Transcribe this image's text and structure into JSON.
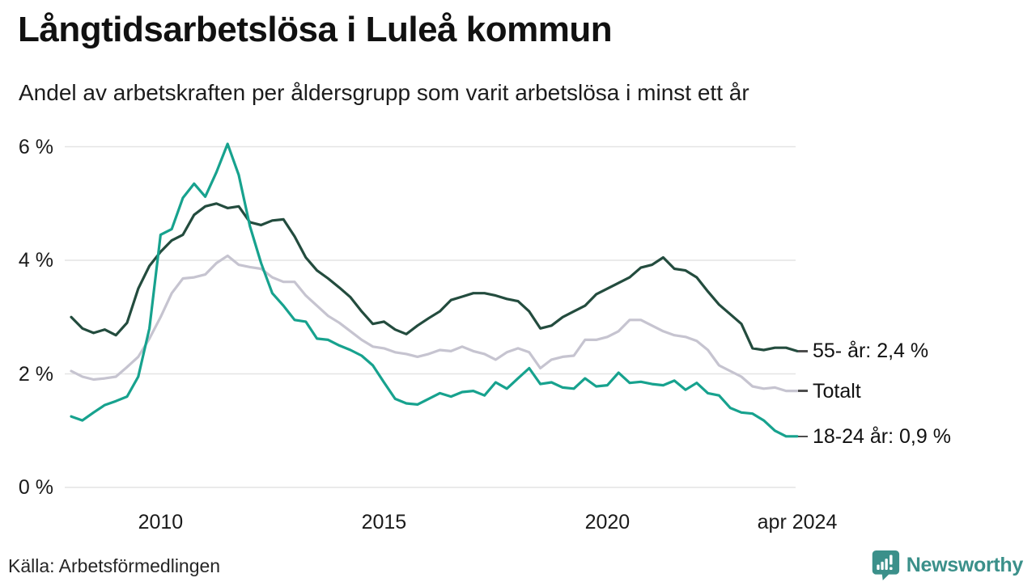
{
  "header": {
    "title": "Långtidsarbetslösa i Luleå kommun",
    "subtitle": "Andel av arbetskraften per åldersgrupp som varit arbetslösa i minst ett år"
  },
  "footer": {
    "source": "Källa: Arbetsförmedlingen",
    "brand": "Newsworthy"
  },
  "colors": {
    "series_55": "#234c3e",
    "series_total": "#c6c4d0",
    "series_18_24": "#17a28e",
    "gridline": "#e4e4e4",
    "label_tick": "#4d4d4d",
    "brand_teal": "#3b908a"
  },
  "chart_data": {
    "type": "line",
    "title": "Långtidsarbetslösa i Luleå kommun",
    "subtitle": "Andel av arbetskraften per åldersgrupp som varit arbetslösa i minst ett år",
    "xlabel": "",
    "ylabel": "",
    "grid": "horizontal",
    "legend_position": "right-end-of-line",
    "xlim": [
      2008.0,
      2024.25
    ],
    "ylim": [
      0,
      6.2
    ],
    "x_unit": "year (decimal, quarterly samples of monthly data)",
    "yticks": {
      "values": [
        0,
        2,
        4,
        6
      ],
      "labels": [
        "0 %",
        "2 %",
        "4 %",
        "6 %"
      ]
    },
    "xticks": {
      "values": [
        2010,
        2015,
        2020,
        2024.25
      ],
      "labels": [
        "2010",
        "2015",
        "2020",
        "apr 2024"
      ]
    },
    "x": [
      2008.0,
      2008.25,
      2008.5,
      2008.75,
      2009.0,
      2009.25,
      2009.5,
      2009.75,
      2010.0,
      2010.25,
      2010.5,
      2010.75,
      2011.0,
      2011.25,
      2011.5,
      2011.75,
      2012.0,
      2012.25,
      2012.5,
      2012.75,
      2013.0,
      2013.25,
      2013.5,
      2013.75,
      2014.0,
      2014.25,
      2014.5,
      2014.75,
      2015.0,
      2015.25,
      2015.5,
      2015.75,
      2016.0,
      2016.25,
      2016.5,
      2016.75,
      2017.0,
      2017.25,
      2017.5,
      2017.75,
      2018.0,
      2018.25,
      2018.5,
      2018.75,
      2019.0,
      2019.25,
      2019.5,
      2019.75,
      2020.0,
      2020.25,
      2020.5,
      2020.75,
      2021.0,
      2021.25,
      2021.5,
      2021.75,
      2022.0,
      2022.25,
      2022.5,
      2022.75,
      2023.0,
      2023.25,
      2023.5,
      2023.75,
      2024.0,
      2024.25
    ],
    "series": [
      {
        "id": "totalt",
        "name": "Totalt",
        "label": "Totalt",
        "color": "#c6c4d0",
        "values": [
          2.05,
          1.95,
          1.9,
          1.92,
          1.95,
          2.12,
          2.3,
          2.62,
          3.0,
          3.42,
          3.68,
          3.7,
          3.75,
          3.95,
          4.08,
          3.92,
          3.88,
          3.85,
          3.7,
          3.62,
          3.62,
          3.38,
          3.2,
          3.02,
          2.9,
          2.75,
          2.6,
          2.48,
          2.45,
          2.38,
          2.35,
          2.3,
          2.35,
          2.42,
          2.4,
          2.48,
          2.4,
          2.35,
          2.25,
          2.38,
          2.45,
          2.38,
          2.1,
          2.25,
          2.3,
          2.32,
          2.6,
          2.6,
          2.65,
          2.75,
          2.95,
          2.95,
          2.85,
          2.75,
          2.68,
          2.65,
          2.58,
          2.42,
          2.15,
          2.05,
          1.95,
          1.78,
          1.74,
          1.76,
          1.7,
          1.7
        ]
      },
      {
        "id": "55-ar",
        "name": "55- år",
        "label": "55- år: 2,4 %",
        "end_value_text": "2,4 %",
        "color": "#234c3e",
        "values": [
          3.0,
          2.8,
          2.72,
          2.78,
          2.68,
          2.9,
          3.5,
          3.9,
          4.15,
          4.35,
          4.45,
          4.8,
          4.95,
          5.0,
          4.92,
          4.95,
          4.67,
          4.62,
          4.7,
          4.72,
          4.42,
          4.05,
          3.82,
          3.68,
          3.52,
          3.35,
          3.1,
          2.88,
          2.92,
          2.78,
          2.7,
          2.85,
          2.98,
          3.1,
          3.3,
          3.36,
          3.42,
          3.42,
          3.38,
          3.32,
          3.28,
          3.1,
          2.8,
          2.85,
          3.0,
          3.1,
          3.2,
          3.4,
          3.5,
          3.6,
          3.7,
          3.87,
          3.92,
          4.05,
          3.85,
          3.82,
          3.7,
          3.45,
          3.22,
          3.05,
          2.88,
          2.45,
          2.42,
          2.46,
          2.46,
          2.4
        ]
      },
      {
        "id": "18-24-ar",
        "name": "18-24 år",
        "label": "18-24 år: 0,9 %",
        "end_value_text": "0,9 %",
        "color": "#17a28e",
        "values": [
          1.25,
          1.18,
          1.32,
          1.45,
          1.52,
          1.6,
          1.95,
          2.8,
          4.45,
          4.55,
          5.1,
          5.35,
          5.12,
          5.55,
          6.05,
          5.5,
          4.6,
          3.95,
          3.42,
          3.2,
          2.95,
          2.92,
          2.62,
          2.6,
          2.5,
          2.42,
          2.32,
          2.15,
          1.85,
          1.56,
          1.48,
          1.46,
          1.56,
          1.66,
          1.6,
          1.68,
          1.7,
          1.62,
          1.85,
          1.74,
          1.92,
          2.1,
          1.82,
          1.85,
          1.76,
          1.74,
          1.92,
          1.78,
          1.8,
          2.02,
          1.84,
          1.86,
          1.82,
          1.8,
          1.88,
          1.72,
          1.84,
          1.66,
          1.62,
          1.4,
          1.32,
          1.3,
          1.18,
          1.0,
          0.9,
          0.9
        ]
      }
    ]
  }
}
